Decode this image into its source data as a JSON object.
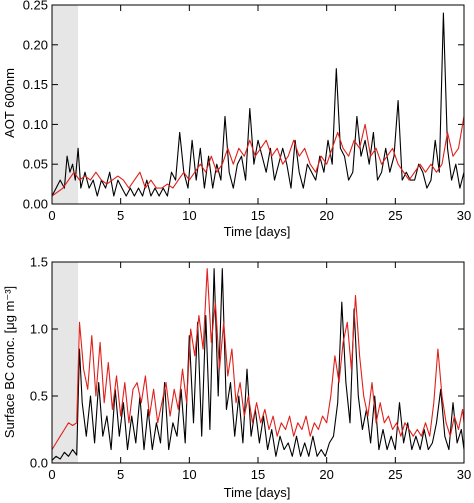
{
  "colors": {
    "black_series": "#000000",
    "red_series": "#e0201b",
    "spinup_shade": "#e6e6e6"
  },
  "chart_data": [
    {
      "type": "line",
      "ylabel": "AOT 600nm",
      "xlabel": "Time [days]",
      "xlim": [
        0,
        30
      ],
      "ylim": [
        0,
        0.25
      ],
      "x_ticks": [
        0,
        5,
        10,
        15,
        20,
        25,
        30
      ],
      "x_tick_labels": [
        "0",
        "5",
        "10",
        "15",
        "20",
        "25",
        "30"
      ],
      "y_ticks": [
        0,
        0.05,
        0.1,
        0.15,
        0.2,
        0.25
      ],
      "y_tick_labels": [
        "0.00",
        "0.05",
        "0.10",
        "0.15",
        "0.20",
        "0.25"
      ],
      "shaded_range": [
        0,
        1.9
      ],
      "grid": false,
      "series": [
        {
          "color": "#000000",
          "x": [
            0,
            0.3,
            0.6,
            0.9,
            1.1,
            1.3,
            1.5,
            1.7,
            1.9,
            2.1,
            2.4,
            2.7,
            3.0,
            3.3,
            3.6,
            3.9,
            4.2,
            4.5,
            4.8,
            5.1,
            5.4,
            5.7,
            6.0,
            6.3,
            6.6,
            6.9,
            7.2,
            7.5,
            7.8,
            8.1,
            8.4,
            8.7,
            9.0,
            9.3,
            9.6,
            9.9,
            10.2,
            10.5,
            10.8,
            11.1,
            11.4,
            11.7,
            12.0,
            12.3,
            12.6,
            12.9,
            13.2,
            13.5,
            13.8,
            14.1,
            14.4,
            14.7,
            15.0,
            15.3,
            15.6,
            15.9,
            16.2,
            16.5,
            16.8,
            17.1,
            17.4,
            17.7,
            18.0,
            18.3,
            18.6,
            18.9,
            19.2,
            19.5,
            19.8,
            20.1,
            20.4,
            20.7,
            21.0,
            21.3,
            21.6,
            21.9,
            22.2,
            22.5,
            22.8,
            23.1,
            23.4,
            23.7,
            24.0,
            24.3,
            24.6,
            24.9,
            25.2,
            25.5,
            25.8,
            26.1,
            26.4,
            26.7,
            27.0,
            27.3,
            27.6,
            27.9,
            28.2,
            28.5,
            28.8,
            29.1,
            29.4,
            29.7,
            30
          ],
          "y": [
            0.01,
            0.02,
            0.03,
            0.02,
            0.06,
            0.04,
            0.05,
            0.03,
            0.07,
            0.02,
            0.04,
            0.02,
            0.03,
            0.01,
            0.03,
            0.02,
            0.04,
            0.01,
            0.03,
            0.02,
            0.01,
            0.02,
            0.01,
            0.02,
            0.01,
            0.03,
            0.01,
            0.02,
            0.01,
            0.02,
            0.01,
            0.04,
            0.03,
            0.09,
            0.04,
            0.02,
            0.08,
            0.03,
            0.07,
            0.02,
            0.06,
            0.02,
            0.05,
            0.03,
            0.11,
            0.04,
            0.02,
            0.05,
            0.06,
            0.03,
            0.12,
            0.05,
            0.08,
            0.06,
            0.04,
            0.07,
            0.03,
            0.05,
            0.07,
            0.05,
            0.02,
            0.08,
            0.04,
            0.02,
            0.05,
            0.04,
            0.03,
            0.06,
            0.04,
            0.08,
            0.05,
            0.17,
            0.07,
            0.06,
            0.03,
            0.04,
            0.11,
            0.06,
            0.08,
            0.05,
            0.09,
            0.03,
            0.04,
            0.07,
            0.04,
            0.06,
            0.13,
            0.03,
            0.04,
            0.03,
            0.03,
            0.05,
            0.04,
            0.02,
            0.03,
            0.08,
            0.04,
            0.24,
            0.07,
            0.03,
            0.05,
            0.02,
            0.04
          ]
        },
        {
          "color": "#e0201b",
          "x": [
            0,
            0.4,
            0.8,
            1.2,
            1.6,
            2.0,
            2.4,
            2.8,
            3.2,
            3.6,
            4.0,
            4.4,
            4.8,
            5.2,
            5.6,
            6.0,
            6.4,
            6.8,
            7.2,
            7.6,
            8.0,
            8.4,
            8.8,
            9.2,
            9.6,
            10.0,
            10.4,
            10.8,
            11.2,
            11.6,
            12.0,
            12.4,
            12.8,
            13.2,
            13.6,
            14.0,
            14.4,
            14.8,
            15.2,
            15.6,
            16.0,
            16.4,
            16.8,
            17.2,
            17.6,
            18.0,
            18.4,
            18.8,
            19.2,
            19.6,
            20.0,
            20.4,
            20.8,
            21.2,
            21.6,
            22.0,
            22.4,
            22.8,
            23.2,
            23.6,
            24.0,
            24.4,
            24.8,
            25.2,
            25.6,
            26.0,
            26.4,
            26.8,
            27.2,
            27.6,
            28.0,
            28.4,
            28.8,
            29.2,
            29.6,
            30
          ],
          "y": [
            0.01,
            0.015,
            0.02,
            0.03,
            0.04,
            0.03,
            0.035,
            0.03,
            0.04,
            0.03,
            0.025,
            0.03,
            0.035,
            0.03,
            0.02,
            0.03,
            0.04,
            0.02,
            0.03,
            0.02,
            0.02,
            0.025,
            0.02,
            0.03,
            0.04,
            0.03,
            0.04,
            0.05,
            0.04,
            0.06,
            0.04,
            0.05,
            0.07,
            0.05,
            0.07,
            0.06,
            0.08,
            0.06,
            0.07,
            0.08,
            0.06,
            0.07,
            0.05,
            0.06,
            0.08,
            0.06,
            0.07,
            0.05,
            0.04,
            0.06,
            0.05,
            0.07,
            0.09,
            0.07,
            0.06,
            0.08,
            0.07,
            0.1,
            0.06,
            0.07,
            0.05,
            0.06,
            0.07,
            0.05,
            0.04,
            0.03,
            0.04,
            0.05,
            0.04,
            0.05,
            0.04,
            0.05,
            0.09,
            0.06,
            0.07,
            0.11
          ]
        }
      ]
    },
    {
      "type": "line",
      "ylabel": "Surface BC conc. [μg m⁻³]",
      "xlabel": "Time [days]",
      "xlim": [
        0,
        30
      ],
      "ylim": [
        0,
        1.5
      ],
      "x_ticks": [
        0,
        5,
        10,
        15,
        20,
        25,
        30
      ],
      "x_tick_labels": [
        "0",
        "5",
        "10",
        "15",
        "20",
        "25",
        "30"
      ],
      "y_ticks": [
        0,
        0.5,
        1.0,
        1.5
      ],
      "y_tick_labels": [
        "0.0",
        "0.5",
        "1.0",
        "1.5"
      ],
      "shaded_range": [
        0,
        1.9
      ],
      "grid": false,
      "series": [
        {
          "color": "#000000",
          "x": [
            0,
            0.3,
            0.6,
            0.9,
            1.2,
            1.5,
            1.8,
            2.0,
            2.2,
            2.5,
            2.8,
            3.1,
            3.4,
            3.7,
            4.0,
            4.3,
            4.6,
            4.9,
            5.2,
            5.5,
            5.8,
            6.1,
            6.4,
            6.7,
            7.0,
            7.3,
            7.6,
            7.9,
            8.2,
            8.5,
            8.8,
            9.1,
            9.4,
            9.7,
            10.0,
            10.3,
            10.6,
            10.9,
            11.2,
            11.5,
            11.8,
            12.1,
            12.4,
            12.7,
            13.0,
            13.3,
            13.6,
            13.9,
            14.2,
            14.5,
            14.8,
            15.1,
            15.4,
            15.7,
            16.0,
            16.3,
            16.6,
            16.9,
            17.2,
            17.5,
            17.8,
            18.1,
            18.4,
            18.7,
            19.0,
            19.3,
            19.6,
            19.9,
            20.2,
            20.5,
            20.8,
            21.1,
            21.4,
            21.7,
            22.0,
            22.3,
            22.6,
            22.9,
            23.2,
            23.5,
            23.8,
            24.1,
            24.4,
            24.7,
            25.0,
            25.3,
            25.6,
            25.9,
            26.2,
            26.5,
            26.8,
            27.1,
            27.4,
            27.7,
            28.0,
            28.3,
            28.6,
            28.9,
            29.2,
            29.5,
            29.8,
            30
          ],
          "y": [
            0.02,
            0.05,
            0.03,
            0.08,
            0.05,
            0.1,
            0.06,
            0.85,
            0.45,
            0.2,
            0.5,
            0.15,
            0.6,
            0.2,
            0.35,
            0.1,
            0.55,
            0.2,
            0.45,
            0.1,
            0.35,
            0.15,
            0.5,
            0.1,
            0.4,
            0.1,
            0.3,
            0.15,
            0.6,
            0.1,
            0.3,
            0.2,
            0.55,
            0.15,
            0.95,
            0.3,
            1.05,
            0.2,
            1.1,
            0.25,
            1.45,
            0.5,
            1.45,
            0.4,
            0.6,
            0.2,
            0.5,
            0.15,
            0.7,
            0.2,
            0.4,
            0.15,
            0.35,
            0.1,
            0.25,
            0.05,
            0.2,
            0.1,
            0.15,
            0.05,
            0.2,
            0.05,
            0.15,
            0.05,
            0.2,
            0.05,
            0.1,
            0.05,
            0.15,
            0.2,
            0.45,
            1.2,
            0.6,
            0.3,
            1.15,
            0.5,
            0.25,
            0.4,
            0.15,
            0.5,
            0.1,
            0.25,
            0.1,
            0.2,
            0.1,
            0.45,
            0.15,
            0.3,
            0.1,
            0.2,
            0.1,
            0.25,
            0.1,
            0.15,
            0.3,
            0.55,
            0.2,
            0.1,
            0.45,
            0.15,
            0.25,
            0.1
          ]
        },
        {
          "color": "#e0201b",
          "x": [
            0,
            0.3,
            0.6,
            0.9,
            1.2,
            1.5,
            1.8,
            2.0,
            2.3,
            2.6,
            2.9,
            3.2,
            3.5,
            3.8,
            4.1,
            4.4,
            4.7,
            5.0,
            5.3,
            5.6,
            5.9,
            6.2,
            6.5,
            6.8,
            7.1,
            7.4,
            7.7,
            8.0,
            8.3,
            8.6,
            8.9,
            9.2,
            9.5,
            9.8,
            10.1,
            10.4,
            10.7,
            11.0,
            11.3,
            11.6,
            11.9,
            12.2,
            12.5,
            12.8,
            13.1,
            13.4,
            13.7,
            14.0,
            14.3,
            14.6,
            14.9,
            15.2,
            15.5,
            15.8,
            16.1,
            16.4,
            16.7,
            17.0,
            17.3,
            17.6,
            17.9,
            18.2,
            18.5,
            18.8,
            19.1,
            19.4,
            19.7,
            20.0,
            20.3,
            20.6,
            20.9,
            21.2,
            21.5,
            21.8,
            22.1,
            22.4,
            22.7,
            23.0,
            23.3,
            23.6,
            23.9,
            24.2,
            24.5,
            24.8,
            25.1,
            25.4,
            25.7,
            26.0,
            26.3,
            26.6,
            26.9,
            27.2,
            27.5,
            27.8,
            28.1,
            28.4,
            28.7,
            29.0,
            29.3,
            29.6,
            29.9,
            30
          ],
          "y": [
            0.1,
            0.15,
            0.2,
            0.25,
            0.3,
            0.28,
            0.3,
            1.05,
            0.7,
            0.55,
            0.95,
            0.5,
            0.9,
            0.45,
            0.75,
            0.4,
            0.65,
            0.35,
            0.6,
            0.3,
            0.55,
            0.6,
            0.45,
            0.65,
            0.35,
            0.55,
            0.3,
            0.45,
            0.6,
            0.35,
            0.55,
            0.4,
            0.7,
            0.45,
            1.0,
            0.8,
            1.1,
            0.85,
            1.45,
            0.9,
            1.2,
            0.7,
            1.05,
            0.65,
            0.85,
            0.45,
            0.6,
            0.35,
            0.5,
            0.3,
            0.45,
            0.3,
            0.4,
            0.25,
            0.35,
            0.2,
            0.3,
            0.25,
            0.35,
            0.2,
            0.3,
            0.25,
            0.35,
            0.2,
            0.3,
            0.25,
            0.35,
            0.3,
            0.5,
            0.8,
            0.6,
            0.9,
            1.05,
            0.7,
            1.25,
            0.8,
            0.5,
            0.35,
            0.6,
            0.3,
            0.45,
            0.3,
            0.35,
            0.25,
            0.3,
            0.2,
            0.3,
            0.25,
            0.2,
            0.25,
            0.2,
            0.3,
            0.2,
            0.45,
            0.85,
            0.5,
            0.3,
            0.2,
            0.35,
            0.25,
            0.4,
            0.3
          ]
        }
      ]
    }
  ]
}
